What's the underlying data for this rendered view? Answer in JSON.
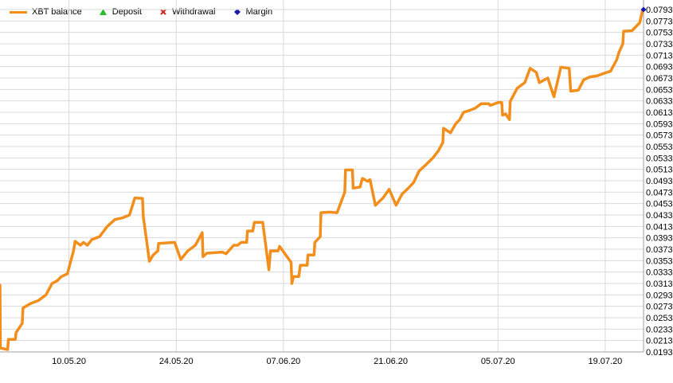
{
  "chart_data": {
    "type": "line",
    "title": "",
    "xlabel": "",
    "ylabel": "",
    "ylim": [
      0.0193,
      0.0803
    ],
    "x_tick_labels": [
      "10.05.20",
      "24.05.20",
      "07.06.20",
      "21.06.20",
      "05.07.20",
      "19.07.20"
    ],
    "x_tick_days": [
      9,
      23,
      37,
      51,
      65,
      79
    ],
    "x_range_days": [
      0,
      84
    ],
    "y_tick_labels": [
      "0.0793",
      "0.0773",
      "0.0753",
      "0.0733",
      "0.0713",
      "0.0693",
      "0.0673",
      "0.0653",
      "0.0633",
      "0.0613",
      "0.0593",
      "0.0573",
      "0.0553",
      "0.0533",
      "0.0513",
      "0.0493",
      "0.0473",
      "0.0453",
      "0.0433",
      "0.0413",
      "0.0393",
      "0.0373",
      "0.0353",
      "0.0333",
      "0.0313",
      "0.0293",
      "0.0273",
      "0.0253",
      "0.0233",
      "0.0213",
      "0.0193"
    ],
    "series": [
      {
        "name": "XBT balance",
        "color": "#f28e1c",
        "points": [
          [
            0.0,
            0.031
          ],
          [
            0.05,
            0.02
          ],
          [
            1.0,
            0.0197
          ],
          [
            1.1,
            0.0215
          ],
          [
            2.0,
            0.0215
          ],
          [
            2.1,
            0.0227
          ],
          [
            2.9,
            0.0243
          ],
          [
            3.0,
            0.027
          ],
          [
            4.0,
            0.0278
          ],
          [
            5.0,
            0.0283
          ],
          [
            6.0,
            0.0293
          ],
          [
            6.8,
            0.0313
          ],
          [
            7.5,
            0.0318
          ],
          [
            8.0,
            0.0325
          ],
          [
            8.8,
            0.033
          ],
          [
            9.6,
            0.037
          ],
          [
            9.8,
            0.0387
          ],
          [
            10.5,
            0.038
          ],
          [
            10.9,
            0.0385
          ],
          [
            11.4,
            0.038
          ],
          [
            12.0,
            0.039
          ],
          [
            13.0,
            0.0395
          ],
          [
            14.0,
            0.0413
          ],
          [
            15.0,
            0.0425
          ],
          [
            16.0,
            0.0428
          ],
          [
            16.9,
            0.0433
          ],
          [
            17.6,
            0.0463
          ],
          [
            18.6,
            0.0462
          ],
          [
            18.7,
            0.043
          ],
          [
            19.5,
            0.0352
          ],
          [
            20.0,
            0.0363
          ],
          [
            20.6,
            0.037
          ],
          [
            20.7,
            0.0383
          ],
          [
            22.8,
            0.0385
          ],
          [
            23.6,
            0.0355
          ],
          [
            24.5,
            0.037
          ],
          [
            25.5,
            0.038
          ],
          [
            26.4,
            0.0402
          ],
          [
            26.5,
            0.036
          ],
          [
            27.0,
            0.0366
          ],
          [
            29.0,
            0.0368
          ],
          [
            29.5,
            0.0365
          ],
          [
            30.5,
            0.038
          ],
          [
            31.0,
            0.038
          ],
          [
            31.5,
            0.0385
          ],
          [
            32.2,
            0.0385
          ],
          [
            32.3,
            0.0405
          ],
          [
            33.0,
            0.0405
          ],
          [
            33.2,
            0.042
          ],
          [
            34.3,
            0.042
          ],
          [
            35.1,
            0.0337
          ],
          [
            35.3,
            0.037
          ],
          [
            36.3,
            0.037
          ],
          [
            36.5,
            0.0378
          ],
          [
            37.3,
            0.0363
          ],
          [
            38.0,
            0.035
          ],
          [
            38.1,
            0.0313
          ],
          [
            38.3,
            0.0325
          ],
          [
            39.0,
            0.0325
          ],
          [
            39.2,
            0.0345
          ],
          [
            40.1,
            0.0345
          ],
          [
            40.2,
            0.0363
          ],
          [
            41.0,
            0.0363
          ],
          [
            41.1,
            0.0385
          ],
          [
            41.8,
            0.0395
          ],
          [
            41.9,
            0.0437
          ],
          [
            43.0,
            0.0438
          ],
          [
            44.0,
            0.0437
          ],
          [
            45.0,
            0.0473
          ],
          [
            45.1,
            0.0512
          ],
          [
            46.0,
            0.0512
          ],
          [
            46.1,
            0.048
          ],
          [
            47.0,
            0.0482
          ],
          [
            47.3,
            0.0497
          ],
          [
            48.0,
            0.0492
          ],
          [
            48.3,
            0.0495
          ],
          [
            49.0,
            0.045
          ],
          [
            50.0,
            0.0463
          ],
          [
            50.8,
            0.0478
          ],
          [
            51.7,
            0.045
          ],
          [
            52.5,
            0.047
          ],
          [
            53.3,
            0.048
          ],
          [
            54.0,
            0.049
          ],
          [
            54.7,
            0.051
          ],
          [
            55.5,
            0.052
          ],
          [
            56.5,
            0.0533
          ],
          [
            57.2,
            0.0545
          ],
          [
            57.8,
            0.056
          ],
          [
            57.9,
            0.0585
          ],
          [
            58.8,
            0.0577
          ],
          [
            59.5,
            0.0593
          ],
          [
            60.0,
            0.06
          ],
          [
            60.5,
            0.0613
          ],
          [
            61.0,
            0.0615
          ],
          [
            62.0,
            0.062
          ],
          [
            62.8,
            0.0628
          ],
          [
            63.8,
            0.0628
          ],
          [
            64.0,
            0.0625
          ],
          [
            65.0,
            0.063
          ],
          [
            65.5,
            0.063
          ],
          [
            65.6,
            0.0608
          ],
          [
            66.0,
            0.061
          ],
          [
            66.5,
            0.06
          ],
          [
            66.6,
            0.0632
          ],
          [
            67.5,
            0.0655
          ],
          [
            68.5,
            0.0665
          ],
          [
            69.2,
            0.069
          ],
          [
            70.0,
            0.0683
          ],
          [
            70.4,
            0.0665
          ],
          [
            71.5,
            0.0673
          ],
          [
            72.3,
            0.064
          ],
          [
            73.0,
            0.068
          ],
          [
            73.2,
            0.0692
          ],
          [
            74.3,
            0.069
          ],
          [
            74.5,
            0.065
          ],
          [
            75.5,
            0.0652
          ],
          [
            76.2,
            0.067
          ],
          [
            77.0,
            0.0675
          ],
          [
            78.0,
            0.0677
          ],
          [
            79.0,
            0.0682
          ],
          [
            79.7,
            0.0685
          ],
          [
            80.5,
            0.0705
          ],
          [
            80.8,
            0.0718
          ],
          [
            81.3,
            0.0733
          ],
          [
            81.4,
            0.0755
          ],
          [
            82.5,
            0.0756
          ],
          [
            83.0,
            0.0763
          ],
          [
            83.5,
            0.077
          ],
          [
            83.9,
            0.0793
          ],
          [
            84.0,
            0.0793
          ]
        ]
      },
      {
        "name": "Deposit",
        "color": "#2bbd2b",
        "marker": "triangle",
        "points": []
      },
      {
        "name": "Withdrawal",
        "color": "#d42020",
        "marker": "x",
        "points": []
      },
      {
        "name": "Margin",
        "color": "#1a1aa8",
        "marker": "diamond",
        "points": [
          [
            84.0,
            0.0793
          ]
        ]
      }
    ],
    "legend": "top-left",
    "grid": true
  }
}
